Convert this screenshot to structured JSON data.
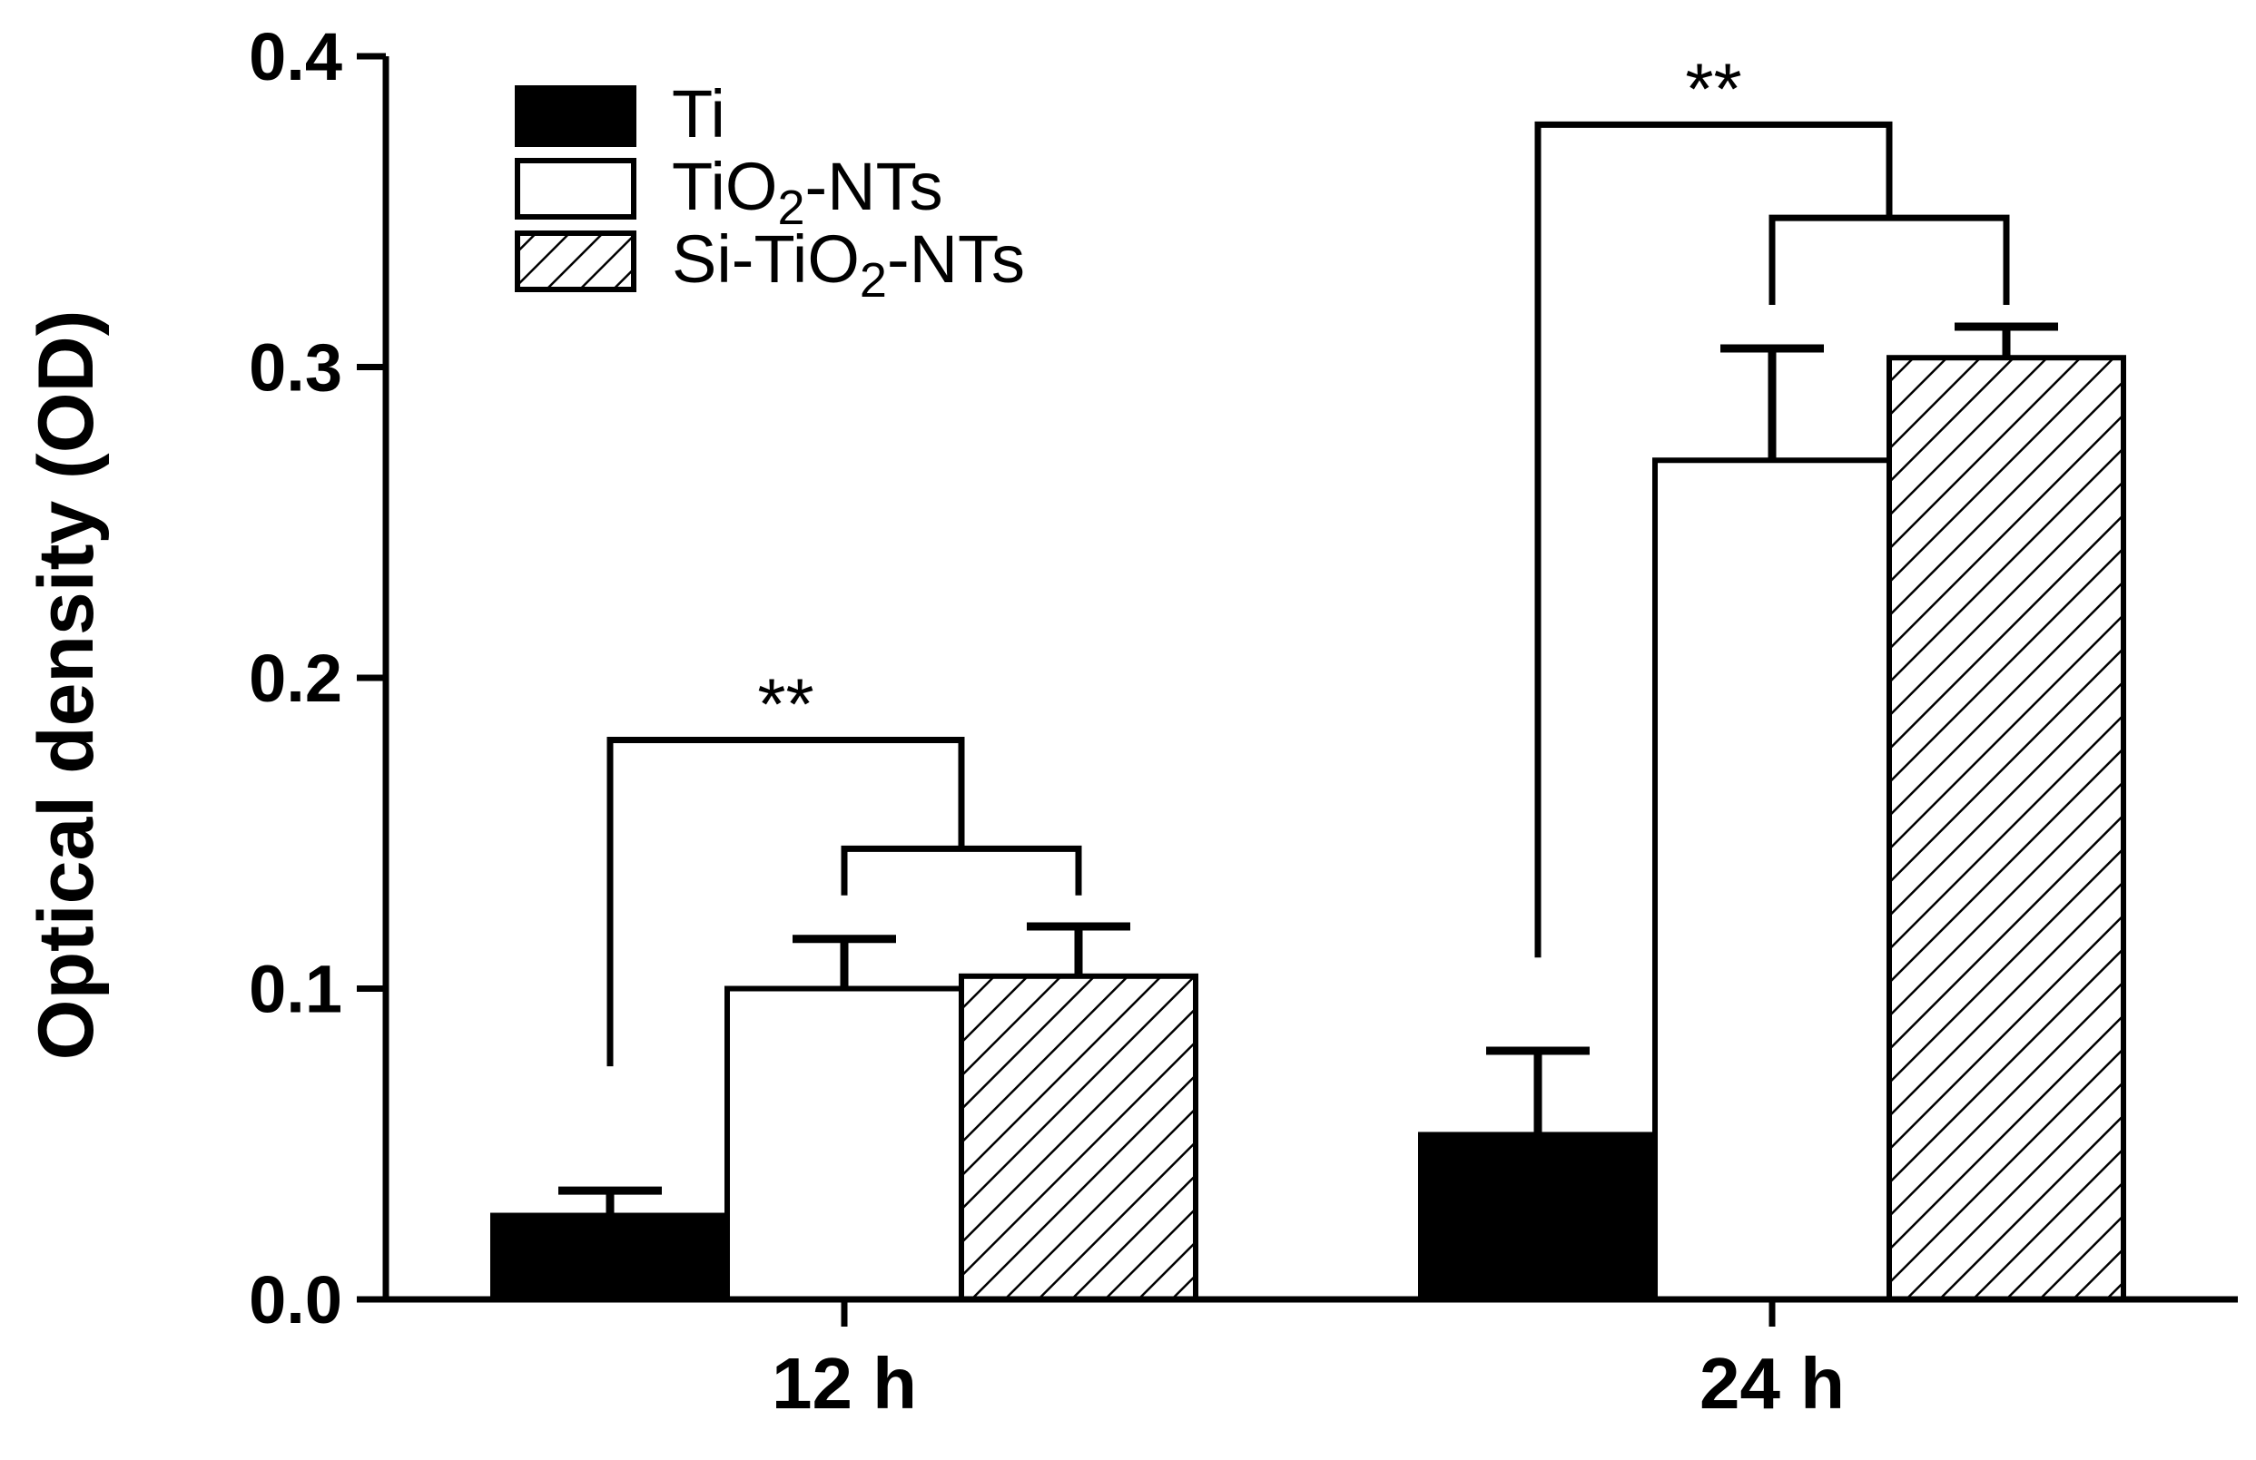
{
  "chart_data": {
    "type": "bar",
    "ylabel": "Optical density (OD)",
    "xlabel": "",
    "ylim": [
      0,
      0.4
    ],
    "yticks": [
      "0.0",
      "0.1",
      "0.2",
      "0.3",
      "0.4"
    ],
    "yticks_values": [
      0,
      0.1,
      0.2,
      0.3,
      0.4
    ],
    "categories": [
      "12 h",
      "24 h"
    ],
    "legend_position": "top-left",
    "series": [
      {
        "name": "Ti",
        "name_main": "Ti",
        "name_sub": "",
        "name_tail": "",
        "fill": "solid",
        "color": "#000000",
        "values": [
          0.027,
          0.053
        ],
        "errors": [
          0.008,
          0.027
        ]
      },
      {
        "name": "TiO2-NTs",
        "name_main": "TiO",
        "name_sub": "2",
        "name_tail": "-NTs",
        "fill": "empty",
        "color": "#ffffff",
        "values": [
          0.1,
          0.27
        ],
        "errors": [
          0.016,
          0.036
        ]
      },
      {
        "name": "Si-TiO2-NTs",
        "name_main": "Si-TiO",
        "name_sub": "2",
        "name_tail": "-NTs",
        "fill": "hatched",
        "color": "#ffffff",
        "values": [
          0.104,
          0.303
        ],
        "errors": [
          0.016,
          0.01
        ]
      }
    ],
    "annotations": [
      {
        "category": "12 h",
        "text": "**",
        "outer_y": 0.18,
        "inner_y": 0.145,
        "outer_left_y": 0.075,
        "inner_stub_y": 0.13
      },
      {
        "category": "24 h",
        "text": "**",
        "outer_y": 0.378,
        "inner_y": 0.348,
        "outer_left_y": 0.11,
        "inner_stub_y": 0.32
      }
    ]
  }
}
